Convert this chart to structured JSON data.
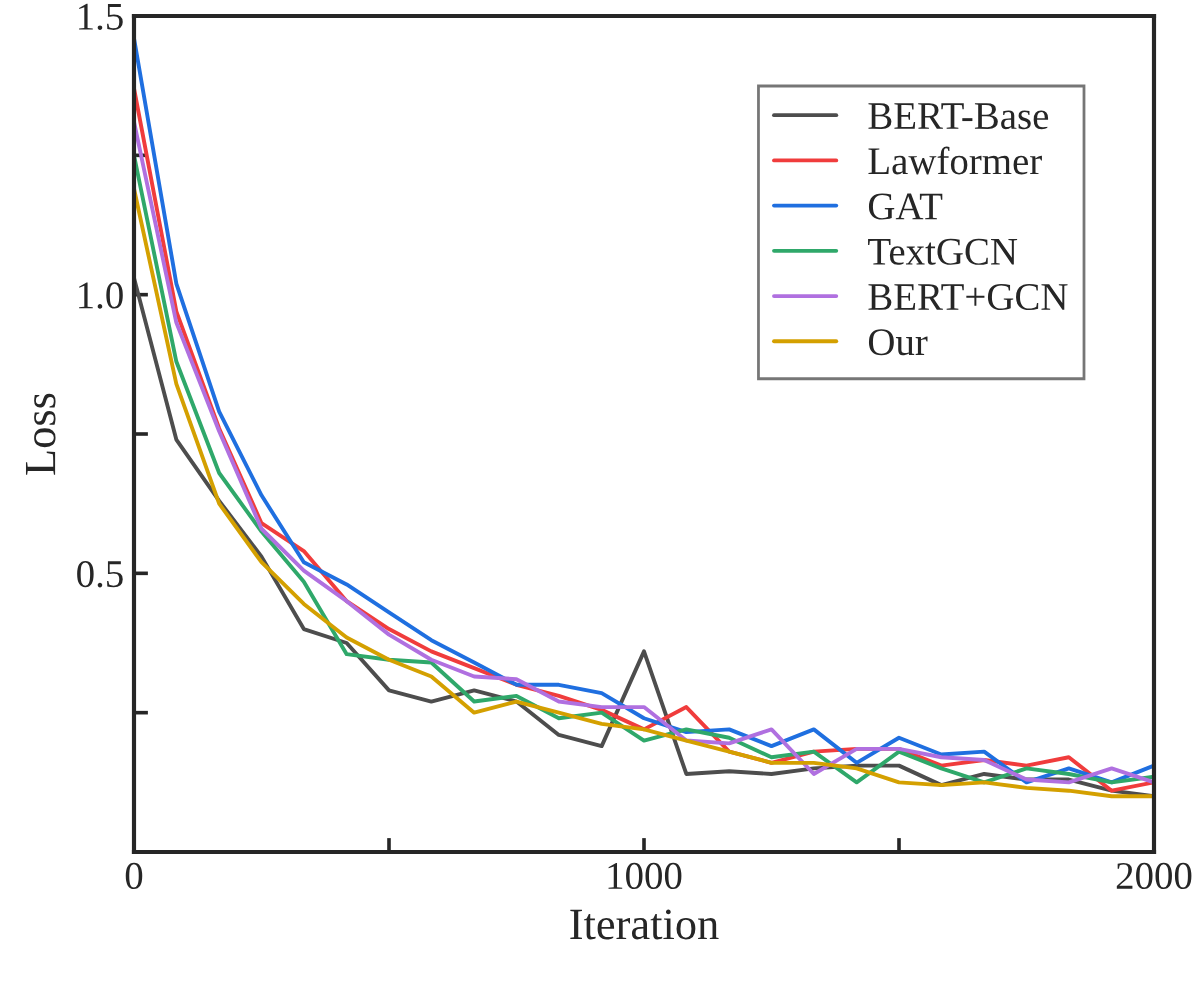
{
  "chart_data": {
    "type": "line",
    "xlabel": "Iteration",
    "ylabel": "Loss",
    "x": [
      0,
      83,
      167,
      250,
      333,
      417,
      500,
      583,
      667,
      750,
      833,
      917,
      1000,
      1083,
      1167,
      1250,
      1333,
      1417,
      1500,
      1583,
      1667,
      1750,
      1833,
      1917,
      2000
    ],
    "series": [
      {
        "name": "BERT-Base",
        "color": "#4d4d4d",
        "values": [
          1.03,
          0.74,
          0.63,
          0.53,
          0.4,
          0.375,
          0.29,
          0.27,
          0.29,
          0.27,
          0.21,
          0.19,
          0.36,
          0.14,
          0.145,
          0.14,
          0.15,
          0.155,
          0.155,
          0.12,
          0.14,
          0.13,
          0.13,
          0.11,
          0.1
        ]
      },
      {
        "name": "Lawformer",
        "color": "#f03c3c",
        "values": [
          1.37,
          0.97,
          0.76,
          0.59,
          0.54,
          0.45,
          0.4,
          0.36,
          0.33,
          0.3,
          0.28,
          0.255,
          0.22,
          0.26,
          0.18,
          0.16,
          0.18,
          0.185,
          0.185,
          0.155,
          0.165,
          0.155,
          0.17,
          0.11,
          0.125
        ]
      },
      {
        "name": "GAT",
        "color": "#1f6fe0",
        "values": [
          1.46,
          1.02,
          0.79,
          0.64,
          0.52,
          0.48,
          0.43,
          0.38,
          0.34,
          0.3,
          0.3,
          0.285,
          0.24,
          0.215,
          0.22,
          0.19,
          0.22,
          0.16,
          0.205,
          0.175,
          0.18,
          0.125,
          0.15,
          0.125,
          0.155
        ]
      },
      {
        "name": "TextGCN",
        "color": "#2fa86a",
        "values": [
          1.25,
          0.88,
          0.68,
          0.575,
          0.485,
          0.355,
          0.345,
          0.34,
          0.27,
          0.28,
          0.24,
          0.25,
          0.2,
          0.22,
          0.205,
          0.17,
          0.18,
          0.125,
          0.18,
          0.15,
          0.125,
          0.15,
          0.14,
          0.125,
          0.135
        ]
      },
      {
        "name": "BERT+GCN",
        "color": "#b070e0",
        "values": [
          1.31,
          0.95,
          0.755,
          0.58,
          0.505,
          0.45,
          0.39,
          0.345,
          0.315,
          0.31,
          0.27,
          0.26,
          0.26,
          0.2,
          0.195,
          0.22,
          0.14,
          0.185,
          0.185,
          0.17,
          0.165,
          0.13,
          0.125,
          0.15,
          0.125
        ]
      },
      {
        "name": "Our",
        "color": "#d4a000",
        "values": [
          1.19,
          0.84,
          0.625,
          0.52,
          0.445,
          0.385,
          0.345,
          0.315,
          0.25,
          0.27,
          0.25,
          0.23,
          0.22,
          0.2,
          0.18,
          0.16,
          0.16,
          0.15,
          0.125,
          0.12,
          0.125,
          0.115,
          0.11,
          0.1,
          0.1
        ]
      }
    ],
    "xlim": [
      0,
      2000
    ],
    "ylim": [
      0,
      1.5
    ],
    "xticks": [
      0,
      {
        "value": 500,
        "label": null
      },
      1000,
      {
        "value": 1500,
        "label": null
      },
      2000
    ],
    "yticks": [
      {
        "value": 0.25,
        "label": null
      },
      {
        "value": 0.5,
        "label": "0.5"
      },
      {
        "value": 0.75,
        "label": null
      },
      {
        "value": 1.0,
        "label": "1.0"
      },
      {
        "value": 1.25,
        "label": null
      },
      {
        "value": 1.5,
        "label": "1.5"
      }
    ],
    "legend": "top right",
    "grid": false,
    "marker": "none",
    "line_style": "solid"
  }
}
